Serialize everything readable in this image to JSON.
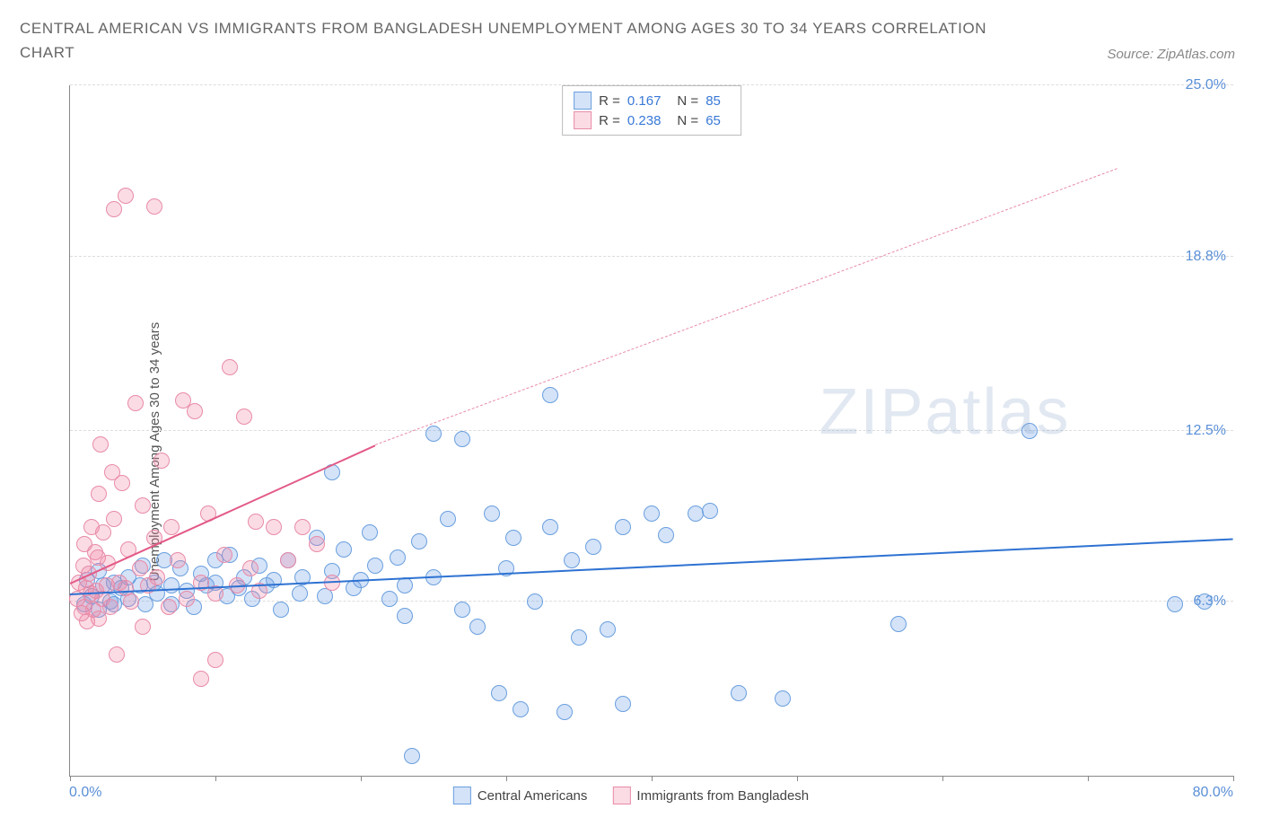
{
  "title": "CENTRAL AMERICAN VS IMMIGRANTS FROM BANGLADESH UNEMPLOYMENT AMONG AGES 30 TO 34 YEARS CORRELATION CHART",
  "source": "Source: ZipAtlas.com",
  "ylabel": "Unemployment Among Ages 30 to 34 years",
  "watermark": "ZIPatlas",
  "chart": {
    "type": "scatter",
    "xlim": [
      0,
      80
    ],
    "ylim": [
      0,
      25
    ],
    "x_tick_positions": [
      0,
      10,
      20,
      30,
      40,
      50,
      60,
      70,
      80
    ],
    "x_min_label": "0.0%",
    "x_max_label": "80.0%",
    "y_ticks": [
      {
        "v": 6.3,
        "label": "6.3%"
      },
      {
        "v": 12.5,
        "label": "12.5%"
      },
      {
        "v": 18.8,
        "label": "18.8%"
      },
      {
        "v": 25.0,
        "label": "25.0%"
      }
    ],
    "grid_color": "#dddddd",
    "axis_color": "#888888",
    "background": "#ffffff"
  },
  "series": [
    {
      "name": "Central Americans",
      "color_fill": "rgba(100,155,230,0.28)",
      "color_stroke": "#6a9fde",
      "marker_r": 9,
      "R": "0.167",
      "N": "85",
      "trend": {
        "x1": 0,
        "y1": 6.6,
        "x2": 80,
        "y2": 8.6,
        "dash": false,
        "color": "#2e72d2",
        "width": 2.5
      },
      "points": [
        [
          1,
          6.2
        ],
        [
          1.2,
          7.1
        ],
        [
          1.5,
          6.5
        ],
        [
          2,
          6.0
        ],
        [
          2,
          7.4
        ],
        [
          2.3,
          6.9
        ],
        [
          2.8,
          6.3
        ],
        [
          3,
          7.0
        ],
        [
          3,
          6.2
        ],
        [
          3.5,
          6.8
        ],
        [
          4,
          7.2
        ],
        [
          4,
          6.4
        ],
        [
          4.8,
          6.9
        ],
        [
          5,
          7.6
        ],
        [
          5.2,
          6.2
        ],
        [
          5.8,
          7.0
        ],
        [
          6,
          6.6
        ],
        [
          6.5,
          7.8
        ],
        [
          7,
          6.9
        ],
        [
          7,
          6.2
        ],
        [
          7.6,
          7.5
        ],
        [
          8,
          6.7
        ],
        [
          8.5,
          6.1
        ],
        [
          9,
          7.3
        ],
        [
          9.4,
          6.9
        ],
        [
          10,
          7.0
        ],
        [
          10,
          7.8
        ],
        [
          10.8,
          6.5
        ],
        [
          11,
          8.0
        ],
        [
          11.6,
          6.8
        ],
        [
          12,
          7.2
        ],
        [
          12.5,
          6.4
        ],
        [
          13,
          7.6
        ],
        [
          13.5,
          6.9
        ],
        [
          14,
          7.1
        ],
        [
          14.5,
          6.0
        ],
        [
          15,
          7.8
        ],
        [
          15.8,
          6.6
        ],
        [
          16,
          7.2
        ],
        [
          17,
          8.6
        ],
        [
          17.5,
          6.5
        ],
        [
          18,
          7.4
        ],
        [
          18,
          11.0
        ],
        [
          18.8,
          8.2
        ],
        [
          19.5,
          6.8
        ],
        [
          20,
          7.1
        ],
        [
          20.6,
          8.8
        ],
        [
          21,
          7.6
        ],
        [
          22,
          6.4
        ],
        [
          22.5,
          7.9
        ],
        [
          23,
          6.9
        ],
        [
          23,
          5.8
        ],
        [
          23.5,
          0.7
        ],
        [
          24,
          8.5
        ],
        [
          25,
          7.2
        ],
        [
          25,
          12.4
        ],
        [
          26,
          9.3
        ],
        [
          27,
          6.0
        ],
        [
          27,
          12.2
        ],
        [
          28,
          5.4
        ],
        [
          29,
          9.5
        ],
        [
          29.5,
          3.0
        ],
        [
          30,
          7.5
        ],
        [
          30.5,
          8.6
        ],
        [
          31,
          2.4
        ],
        [
          32,
          6.3
        ],
        [
          33,
          9.0
        ],
        [
          33,
          13.8
        ],
        [
          34,
          2.3
        ],
        [
          34.5,
          7.8
        ],
        [
          35,
          5.0
        ],
        [
          36,
          8.3
        ],
        [
          37,
          5.3
        ],
        [
          38,
          9.0
        ],
        [
          38,
          2.6
        ],
        [
          40,
          9.5
        ],
        [
          41,
          8.7
        ],
        [
          43,
          9.5
        ],
        [
          44,
          9.6
        ],
        [
          46,
          3.0
        ],
        [
          49,
          2.8
        ],
        [
          57,
          5.5
        ],
        [
          66,
          12.5
        ],
        [
          76,
          6.2
        ],
        [
          78,
          6.3
        ]
      ]
    },
    {
      "name": "Immigrants from Bangladesh",
      "color_fill": "rgba(240,130,160,0.28)",
      "color_stroke": "#e88ba8",
      "marker_r": 9,
      "R": "0.238",
      "N": "65",
      "trend_solid": {
        "x1": 0,
        "y1": 7.0,
        "x2": 21,
        "y2": 12.0,
        "color": "#e35a86",
        "width": 2.3
      },
      "trend_dash": {
        "x1": 21,
        "y1": 12.0,
        "x2": 72,
        "y2": 22.0,
        "color": "#e88ba8",
        "width": 1.3
      },
      "points": [
        [
          0.5,
          6.4
        ],
        [
          0.6,
          7.0
        ],
        [
          0.8,
          5.9
        ],
        [
          0.9,
          7.6
        ],
        [
          1,
          6.1
        ],
        [
          1,
          8.4
        ],
        [
          1.1,
          6.8
        ],
        [
          1.2,
          5.6
        ],
        [
          1.3,
          7.3
        ],
        [
          1.4,
          6.6
        ],
        [
          1.5,
          9.0
        ],
        [
          1.6,
          6.0
        ],
        [
          1.7,
          8.1
        ],
        [
          1.8,
          6.7
        ],
        [
          1.9,
          7.9
        ],
        [
          2,
          5.7
        ],
        [
          2,
          10.2
        ],
        [
          2.1,
          12.0
        ],
        [
          2.2,
          6.4
        ],
        [
          2.3,
          8.8
        ],
        [
          2.5,
          6.9
        ],
        [
          2.6,
          7.7
        ],
        [
          2.8,
          6.1
        ],
        [
          2.9,
          11.0
        ],
        [
          3,
          20.5
        ],
        [
          3,
          9.3
        ],
        [
          3.2,
          4.4
        ],
        [
          3.4,
          7.0
        ],
        [
          3.6,
          10.6
        ],
        [
          3.8,
          6.8
        ],
        [
          3.8,
          21.0
        ],
        [
          4,
          8.2
        ],
        [
          4.2,
          6.3
        ],
        [
          4.5,
          13.5
        ],
        [
          4.8,
          7.5
        ],
        [
          5,
          5.4
        ],
        [
          5,
          9.8
        ],
        [
          5.4,
          6.9
        ],
        [
          5.8,
          8.6
        ],
        [
          5.8,
          20.6
        ],
        [
          6,
          7.2
        ],
        [
          6.3,
          11.4
        ],
        [
          6.8,
          6.1
        ],
        [
          7,
          9.0
        ],
        [
          7.4,
          7.8
        ],
        [
          7.8,
          13.6
        ],
        [
          8,
          6.4
        ],
        [
          8.6,
          13.2
        ],
        [
          9,
          7.0
        ],
        [
          9,
          3.5
        ],
        [
          9.5,
          9.5
        ],
        [
          10,
          6.6
        ],
        [
          10,
          4.2
        ],
        [
          10.6,
          8.0
        ],
        [
          11,
          14.8
        ],
        [
          11.5,
          6.9
        ],
        [
          12,
          13.0
        ],
        [
          12.4,
          7.5
        ],
        [
          12.8,
          9.2
        ],
        [
          13,
          6.7
        ],
        [
          14,
          9.0
        ],
        [
          15,
          7.8
        ],
        [
          16,
          9.0
        ],
        [
          17,
          8.4
        ],
        [
          18,
          7.0
        ]
      ]
    }
  ],
  "legend": {
    "series1": "Central Americans",
    "series2": "Immigrants from Bangladesh",
    "R_label": "R =",
    "N_label": "N ="
  }
}
